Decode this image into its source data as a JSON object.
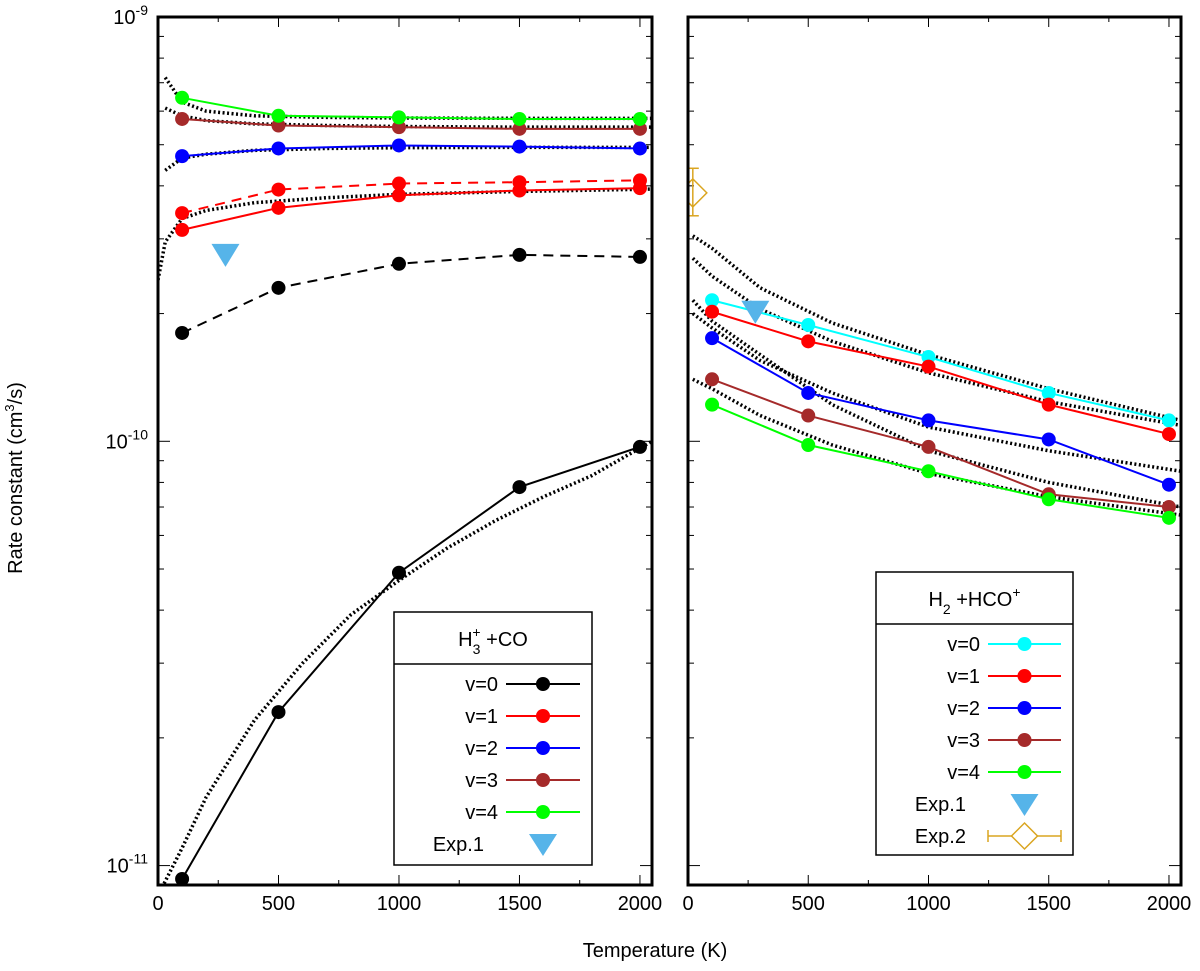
{
  "figure": {
    "ylabel": "Rate constant (cm",
    "ylabel_sup": "3",
    "ylabel_end": "/s)",
    "xlabel": "Temperature (K)"
  },
  "chart_data": [
    {
      "type": "line",
      "panel": "left",
      "yscale": "log",
      "xlim": [
        0,
        2050
      ],
      "ylim": [
        9e-12,
        1e-09
      ],
      "xticks": [
        0,
        500,
        1000,
        1500,
        2000
      ],
      "xtick_labels": [
        "0",
        "500",
        "1000",
        "1500",
        "2000"
      ],
      "yticks": [
        {
          "base": "10",
          "exp": "-9"
        },
        {
          "base": "10",
          "exp": "-10"
        },
        {
          "base": "10",
          "exp": "-11"
        }
      ],
      "legend": {
        "title_main": "H",
        "title_sub": "3",
        "title_sup": "+",
        "title_rest": " +CO",
        "position": "bottom-right"
      },
      "series": [
        {
          "name": "v=0",
          "color": "#000000",
          "dash": "solid",
          "x": [
            100,
            500,
            1000,
            1500,
            2000
          ],
          "y": [
            9.3e-12,
            2.3e-11,
            4.9e-11,
            7.8e-11,
            9.7e-11
          ]
        },
        {
          "name": "v=0",
          "legend": false,
          "color": "#000000",
          "dash": "dashed",
          "x": [
            100,
            500,
            1000,
            1500,
            2000
          ],
          "y": [
            1.8e-10,
            2.3e-10,
            2.62e-10,
            2.75e-10,
            2.72e-10
          ]
        },
        {
          "name": "v=1",
          "color": "#ff0000",
          "dash": "solid",
          "x": [
            100,
            500,
            1000,
            1500,
            2000
          ],
          "y": [
            3.15e-10,
            3.55e-10,
            3.8e-10,
            3.9e-10,
            3.95e-10
          ]
        },
        {
          "name": "v=1",
          "legend": false,
          "color": "#ff0000",
          "dash": "dashed",
          "x": [
            100,
            500,
            1000,
            1500,
            2000
          ],
          "y": [
            3.45e-10,
            3.92e-10,
            4.05e-10,
            4.08e-10,
            4.12e-10
          ]
        },
        {
          "name": "v=2",
          "color": "#0000ff",
          "dash": "solid",
          "x": [
            100,
            500,
            1000,
            1500,
            2000
          ],
          "y": [
            4.7e-10,
            4.9e-10,
            4.98e-10,
            4.95e-10,
            4.9e-10
          ]
        },
        {
          "name": "v=3",
          "color": "#a52a2a",
          "dash": "solid",
          "x": [
            100,
            500,
            1000,
            1500,
            2000
          ],
          "y": [
            5.75e-10,
            5.55e-10,
            5.5e-10,
            5.45e-10,
            5.45e-10
          ]
        },
        {
          "name": "v=4",
          "color": "#00ff00",
          "dash": "solid",
          "x": [
            100,
            500,
            1000,
            1500,
            2000
          ],
          "y": [
            6.45e-10,
            5.85e-10,
            5.8e-10,
            5.75e-10,
            5.75e-10
          ]
        }
      ],
      "experiments": [
        {
          "name": "Exp.1",
          "marker": "triangle-down",
          "color": "#56b4e9",
          "x": 280,
          "y": 2.75e-10
        }
      ],
      "fits": [
        {
          "style": "dotted",
          "x": [
            0,
            100,
            200,
            400,
            600,
            800,
            1000,
            1200,
            1400,
            1600,
            1800,
            2050
          ],
          "y": [
            8.5e-12,
            1.1e-11,
            1.45e-11,
            2.2e-11,
            3e-11,
            3.9e-11,
            4.7e-11,
            5.6e-11,
            6.5e-11,
            7.4e-11,
            8.3e-11,
            1e-10
          ]
        },
        {
          "style": "dotted",
          "x": [
            0,
            30,
            100,
            200,
            400,
            700,
            1000,
            1500,
            2050
          ],
          "y": [
            2.4e-10,
            2.95e-10,
            3.35e-10,
            3.5e-10,
            3.65e-10,
            3.75e-10,
            3.82e-10,
            3.88e-10,
            3.93e-10
          ]
        },
        {
          "style": "dotted",
          "x": [
            30,
            100,
            200,
            400,
            700,
            1000,
            1500,
            2050
          ],
          "y": [
            4.35e-10,
            4.65e-10,
            4.75e-10,
            4.85e-10,
            4.9e-10,
            4.92e-10,
            4.93e-10,
            4.93e-10
          ]
        },
        {
          "style": "dotted",
          "x": [
            30,
            100,
            200,
            400,
            700,
            1000,
            1500,
            2050
          ],
          "y": [
            6.1e-10,
            5.85e-10,
            5.7e-10,
            5.6e-10,
            5.55e-10,
            5.52e-10,
            5.5e-10,
            5.5e-10
          ]
        },
        {
          "style": "dotted",
          "x": [
            30,
            100,
            200,
            400,
            700,
            1000,
            1500,
            2050
          ],
          "y": [
            7.2e-10,
            6.3e-10,
            6e-10,
            5.85e-10,
            5.8e-10,
            5.78e-10,
            5.77e-10,
            5.77e-10
          ]
        }
      ]
    },
    {
      "type": "line",
      "panel": "right",
      "yscale": "log",
      "xlim": [
        0,
        2050
      ],
      "ylim": [
        9e-12,
        1e-09
      ],
      "xticks": [
        0,
        500,
        1000,
        1500,
        2000
      ],
      "xtick_labels": [
        "0",
        "500",
        "1000",
        "1500",
        "2000"
      ],
      "legend": {
        "title_main": "H",
        "title_sub": "2",
        "title_mid": " +HCO",
        "title_sup": "+",
        "position": "bottom-right"
      },
      "series": [
        {
          "name": "v=0",
          "color": "#00ffff",
          "dash": "solid",
          "x": [
            100,
            500,
            1000,
            1500,
            2000
          ],
          "y": [
            2.15e-10,
            1.88e-10,
            1.58e-10,
            1.3e-10,
            1.12e-10
          ]
        },
        {
          "name": "v=1",
          "color": "#ff0000",
          "dash": "solid",
          "x": [
            100,
            500,
            1000,
            1500,
            2000
          ],
          "y": [
            2.02e-10,
            1.72e-10,
            1.5e-10,
            1.22e-10,
            1.04e-10
          ]
        },
        {
          "name": "v=2",
          "color": "#0000ff",
          "dash": "solid",
          "x": [
            100,
            500,
            1000,
            1500,
            2000
          ],
          "y": [
            1.75e-10,
            1.3e-10,
            1.12e-10,
            1.01e-10,
            7.9e-11
          ]
        },
        {
          "name": "v=3",
          "color": "#a52a2a",
          "dash": "solid",
          "x": [
            100,
            500,
            1000,
            1500,
            2000
          ],
          "y": [
            1.4e-10,
            1.15e-10,
            9.7e-11,
            7.5e-11,
            7e-11
          ]
        },
        {
          "name": "v=4",
          "color": "#00ff00",
          "dash": "solid",
          "x": [
            100,
            500,
            1000,
            1500,
            2000
          ],
          "y": [
            1.22e-10,
            9.8e-11,
            8.5e-11,
            7.3e-11,
            6.6e-11
          ]
        }
      ],
      "experiments": [
        {
          "name": "Exp.1",
          "marker": "triangle-down",
          "color": "#56b4e9",
          "x": 280,
          "y": 2.02e-10
        },
        {
          "name": "Exp.2",
          "marker": "diamond-errorbar",
          "color": "#daa520",
          "x": 20,
          "y": 3.85e-10,
          "yerr_low": 3.4e-10,
          "yerr_high": 4.4e-10
        }
      ],
      "fits": [
        {
          "style": "dotted",
          "x": [
            20,
            100,
            300,
            600,
            1000,
            1500,
            2050
          ],
          "y": [
            3.05e-10,
            2.85e-10,
            2.3e-10,
            1.9e-10,
            1.6e-10,
            1.33e-10,
            1.12e-10
          ]
        },
        {
          "style": "dotted",
          "x": [
            20,
            100,
            300,
            600,
            1000,
            1500,
            2050
          ],
          "y": [
            2.7e-10,
            2.45e-10,
            2.05e-10,
            1.72e-10,
            1.45e-10,
            1.24e-10,
            1.09e-10
          ]
        },
        {
          "style": "dotted",
          "x": [
            20,
            100,
            300,
            600,
            1000,
            1500,
            2050
          ],
          "y": [
            2e-10,
            1.85e-10,
            1.55e-10,
            1.3e-10,
            1.08e-10,
            9.5e-11,
            8.5e-11
          ]
        },
        {
          "style": "dotted",
          "x": [
            20,
            100,
            300,
            600,
            1000,
            1500,
            2050
          ],
          "y": [
            2.15e-10,
            1.92e-10,
            1.6e-10,
            1.22e-10,
            9.5e-11,
            8e-11,
            7e-11
          ]
        },
        {
          "style": "dotted",
          "x": [
            20,
            100,
            300,
            600,
            1000,
            1500,
            2050
          ],
          "y": [
            1.4e-10,
            1.33e-10,
            1.15e-10,
            9.8e-11,
            8.4e-11,
            7.4e-11,
            6.7e-11
          ]
        }
      ]
    }
  ]
}
